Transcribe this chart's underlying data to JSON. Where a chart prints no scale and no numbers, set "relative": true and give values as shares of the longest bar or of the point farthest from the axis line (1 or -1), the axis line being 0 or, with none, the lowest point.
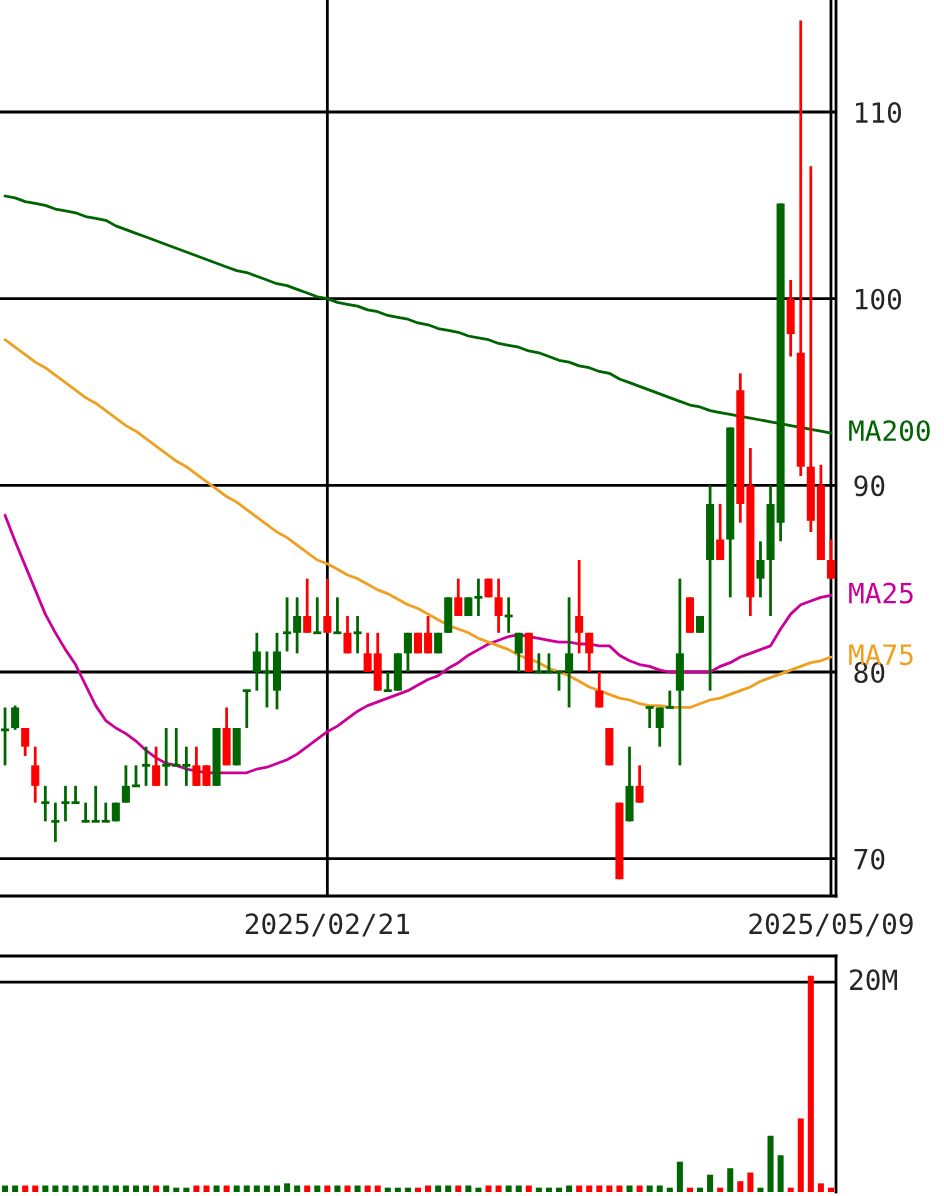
{
  "chart_data": [
    {
      "type": "candlestick",
      "categories": [
        null,
        null,
        null,
        null,
        null,
        null,
        null,
        null,
        null,
        null,
        null,
        null,
        null,
        null,
        null,
        null,
        null,
        null,
        null,
        null,
        null,
        null,
        null,
        null,
        null,
        null,
        null,
        null,
        null,
        null,
        null,
        null,
        "2025/02/21",
        null,
        null,
        null,
        null,
        null,
        null,
        null,
        null,
        null,
        null,
        null,
        null,
        null,
        null,
        null,
        null,
        null,
        null,
        null,
        null,
        null,
        null,
        null,
        null,
        null,
        null,
        null,
        null,
        null,
        null,
        null,
        null,
        null,
        null,
        null,
        null,
        null,
        null,
        null,
        null,
        null,
        null,
        null,
        null,
        null,
        null,
        null,
        null,
        null,
        "2025/05/09"
      ],
      "ohlc": [
        [
          76.9,
          78.1,
          75.0,
          76.9
        ],
        [
          77.0,
          78.2,
          76.9,
          78.1
        ],
        [
          77.0,
          77.0,
          75.5,
          76.0
        ],
        [
          75.0,
          76.0,
          73.0,
          73.9
        ],
        [
          73.0,
          73.9,
          72.0,
          73.0
        ],
        [
          72.0,
          73.0,
          70.9,
          72.0
        ],
        [
          73.0,
          73.9,
          72.0,
          73.0
        ],
        [
          73.0,
          73.9,
          73.0,
          73.0
        ],
        [
          72.0,
          73.0,
          72.0,
          72.0
        ],
        [
          72.0,
          73.9,
          72.0,
          72.0
        ],
        [
          72.0,
          73.0,
          72.0,
          72.0
        ],
        [
          72.0,
          73.0,
          72.0,
          73.0
        ],
        [
          73.0,
          75.0,
          73.0,
          73.9
        ],
        [
          73.9,
          75.0,
          73.9,
          73.9
        ],
        [
          75.0,
          76.0,
          73.9,
          75.0
        ],
        [
          75.0,
          76.0,
          73.9,
          73.9
        ],
        [
          75.0,
          77.0,
          73.9,
          75.0
        ],
        [
          75.0,
          77.0,
          75.0,
          75.0
        ],
        [
          75.0,
          76.0,
          73.9,
          75.0
        ],
        [
          75.0,
          76.0,
          73.9,
          73.9
        ],
        [
          75.0,
          75.0,
          73.9,
          73.9
        ],
        [
          73.9,
          77.0,
          73.9,
          77.0
        ],
        [
          77.0,
          78.1,
          75.0,
          75.0
        ],
        [
          75.0,
          77.0,
          75.0,
          77.0
        ],
        [
          79.0,
          79.0,
          77.0,
          79.0
        ],
        [
          80.0,
          82.1,
          79.0,
          81.1
        ],
        [
          80.0,
          81.1,
          78.1,
          80.0
        ],
        [
          79.0,
          82.1,
          78.0,
          81.1
        ],
        [
          82.1,
          84.0,
          81.1,
          82.1
        ],
        [
          82.1,
          84.0,
          81.0,
          83.0
        ],
        [
          83.0,
          85.0,
          82.1,
          82.1
        ],
        [
          82.1,
          84.0,
          82.1,
          82.1
        ],
        [
          83.0,
          85.0,
          82.1,
          82.1
        ],
        [
          82.1,
          84.0,
          82.1,
          82.1
        ],
        [
          82.1,
          83.0,
          81.0,
          81.0
        ],
        [
          82.1,
          83.0,
          81.0,
          82.1
        ],
        [
          81.0,
          82.1,
          80.0,
          80.0
        ],
        [
          81.0,
          82.1,
          79.0,
          79.0
        ],
        [
          79.0,
          80.0,
          79.0,
          79.0
        ],
        [
          79.0,
          81.0,
          79.0,
          81.0
        ],
        [
          81.0,
          82.1,
          80.0,
          82.1
        ],
        [
          82.1,
          82.1,
          81.0,
          81.0
        ],
        [
          82.1,
          83.0,
          81.0,
          81.0
        ],
        [
          81.0,
          82.1,
          81.0,
          82.1
        ],
        [
          82.1,
          84.0,
          82.1,
          84.0
        ],
        [
          84.0,
          85.0,
          83.0,
          83.0
        ],
        [
          83.0,
          84.0,
          83.0,
          84.0
        ],
        [
          84.0,
          85.0,
          83.0,
          84.0
        ],
        [
          85.0,
          85.0,
          84.0,
          84.0
        ],
        [
          84.0,
          85.0,
          82.1,
          83.0
        ],
        [
          83.0,
          84.0,
          82.1,
          83.0
        ],
        [
          81.0,
          82.1,
          80.0,
          82.1
        ],
        [
          82.1,
          82.1,
          80.0,
          80.0
        ],
        [
          80.0,
          81.0,
          80.0,
          80.0
        ],
        [
          80.0,
          81.0,
          80.0,
          80.0
        ],
        [
          80.0,
          80.0,
          79.0,
          80.0
        ],
        [
          80.0,
          84.0,
          78.1,
          81.0
        ],
        [
          83.0,
          86.0,
          81.0,
          82.1
        ],
        [
          82.1,
          82.1,
          80.0,
          81.0
        ],
        [
          79.0,
          80.0,
          78.1,
          78.1
        ],
        [
          77.0,
          77.0,
          75.0,
          75.0
        ],
        [
          73.0,
          73.0,
          68.9,
          68.9
        ],
        [
          72.0,
          76.0,
          72.0,
          73.9
        ],
        [
          73.9,
          75.0,
          73.0,
          73.0
        ],
        [
          78.1,
          78.1,
          77.0,
          78.1
        ],
        [
          77.0,
          78.1,
          76.0,
          78.1
        ],
        [
          78.1,
          79.0,
          78.1,
          78.1
        ],
        [
          79.0,
          85.0,
          75.0,
          81.0
        ],
        [
          84.0,
          84.0,
          82.1,
          82.1
        ],
        [
          82.1,
          83.0,
          82.1,
          83.0
        ],
        [
          86.0,
          90.0,
          79.0,
          89.0
        ],
        [
          87.1,
          89.0,
          86.0,
          86.0
        ],
        [
          87.1,
          93.1,
          84.0,
          93.1
        ],
        [
          95.1,
          96.0,
          88.0,
          89.0
        ],
        [
          90.0,
          92.0,
          83.0,
          84.0
        ],
        [
          85.0,
          87.0,
          84.0,
          86.0
        ],
        [
          86.0,
          90.0,
          83.0,
          89.0
        ],
        [
          88.0,
          105.1,
          87.0,
          105.1
        ],
        [
          100.0,
          101.0,
          96.9,
          98.1
        ],
        [
          97.1,
          114.9,
          90.5,
          91.0
        ],
        [
          91.0,
          107.1,
          87.5,
          88.1
        ],
        [
          90.0,
          91.1,
          86.0,
          86.0
        ],
        [
          86.0,
          87.1,
          85.0,
          85.0
        ]
      ],
      "colors": [
        "#006600",
        "#006600",
        "#ff0000",
        "#ff0000",
        "#006600",
        "#006600",
        "#006600",
        "#006600",
        "#006600",
        "#006600",
        "#006600",
        "#006600",
        "#006600",
        "#006600",
        "#006600",
        "#ff0000",
        "#006600",
        "#006600",
        "#006600",
        "#ff0000",
        "#ff0000",
        "#006600",
        "#ff0000",
        "#006600",
        "#006600",
        "#006600",
        "#006600",
        "#006600",
        "#006600",
        "#006600",
        "#ff0000",
        "#006600",
        "#ff0000",
        "#006600",
        "#ff0000",
        "#006600",
        "#ff0000",
        "#ff0000",
        "#006600",
        "#006600",
        "#006600",
        "#ff0000",
        "#ff0000",
        "#006600",
        "#006600",
        "#ff0000",
        "#006600",
        "#006600",
        "#ff0000",
        "#ff0000",
        "#006600",
        "#006600",
        "#ff0000",
        "#006600",
        "#006600",
        "#006600",
        "#006600",
        "#ff0000",
        "#ff0000",
        "#ff0000",
        "#ff0000",
        "#ff0000",
        "#006600",
        "#ff0000",
        "#006600",
        "#006600",
        "#006600",
        "#006600",
        "#ff0000",
        "#006600",
        "#006600",
        "#ff0000",
        "#006600",
        "#ff0000",
        "#ff0000",
        "#006600",
        "#006600",
        "#006600",
        "#ff0000",
        "#ff0000",
        "#ff0000",
        "#ff0000",
        "#ff0000"
      ],
      "series": [
        {
          "type": "line",
          "name": "MA200",
          "color": "#006400",
          "values": [
            105.5,
            105.4,
            105.2,
            105.1,
            105.0,
            104.8,
            104.7,
            104.6,
            104.4,
            104.3,
            104.2,
            103.9,
            103.7,
            103.5,
            103.3,
            103.1,
            102.9,
            102.7,
            102.5,
            102.3,
            102.1,
            101.9,
            101.7,
            101.5,
            101.4,
            101.2,
            101.0,
            100.8,
            100.7,
            100.5,
            100.3,
            100.1,
            100.0,
            99.8,
            99.7,
            99.6,
            99.4,
            99.3,
            99.1,
            99.0,
            98.9,
            98.7,
            98.6,
            98.4,
            98.3,
            98.2,
            98.0,
            97.9,
            97.8,
            97.6,
            97.5,
            97.4,
            97.2,
            97.1,
            96.9,
            96.7,
            96.6,
            96.4,
            96.3,
            96.1,
            96.0,
            95.7,
            95.5,
            95.3,
            95.1,
            94.9,
            94.7,
            94.5,
            94.3,
            94.2,
            94.0,
            93.9,
            93.8,
            93.7,
            93.6,
            93.5,
            93.4,
            93.3,
            93.2,
            93.1,
            93.0,
            92.9,
            92.8
          ]
        },
        {
          "type": "line",
          "name": "MA25",
          "color": "#cc0099",
          "values": [
            88.4,
            87.0,
            85.7,
            84.4,
            83.1,
            82.1,
            81.2,
            80.4,
            79.3,
            78.2,
            77.4,
            77.0,
            76.7,
            76.3,
            75.8,
            75.4,
            75.1,
            75.0,
            74.8,
            74.7,
            74.6,
            74.6,
            74.6,
            74.6,
            74.6,
            74.8,
            74.9,
            75.1,
            75.3,
            75.6,
            76.0,
            76.4,
            76.8,
            77.1,
            77.5,
            77.9,
            78.2,
            78.4,
            78.6,
            78.8,
            79.0,
            79.3,
            79.6,
            79.8,
            80.2,
            80.5,
            80.9,
            81.2,
            81.5,
            81.7,
            81.9,
            82.0,
            81.9,
            81.8,
            81.7,
            81.6,
            81.6,
            81.5,
            81.5,
            81.4,
            81.4,
            80.9,
            80.6,
            80.4,
            80.3,
            80.1,
            80.0,
            80.0,
            80.0,
            80.0,
            80.0,
            80.3,
            80.5,
            80.8,
            81.0,
            81.2,
            81.4,
            82.3,
            83.1,
            83.6,
            83.8,
            84.0,
            84.1
          ]
        },
        {
          "type": "line",
          "name": "MA75",
          "color": "#f0a020",
          "values": [
            97.8,
            97.4,
            97.0,
            96.6,
            96.3,
            95.9,
            95.5,
            95.1,
            94.7,
            94.4,
            94.0,
            93.6,
            93.2,
            92.9,
            92.5,
            92.1,
            91.7,
            91.3,
            91.0,
            90.6,
            90.2,
            89.8,
            89.4,
            89.1,
            88.7,
            88.3,
            87.9,
            87.5,
            87.2,
            86.8,
            86.4,
            86.0,
            85.8,
            85.5,
            85.2,
            85.0,
            84.7,
            84.4,
            84.2,
            83.9,
            83.6,
            83.4,
            83.1,
            82.8,
            82.5,
            82.3,
            82.1,
            81.8,
            81.6,
            81.4,
            81.2,
            80.9,
            80.7,
            80.5,
            80.2,
            80.0,
            79.8,
            79.5,
            79.2,
            79.0,
            78.8,
            78.6,
            78.5,
            78.3,
            78.2,
            78.2,
            78.1,
            78.1,
            78.1,
            78.3,
            78.5,
            78.6,
            78.8,
            79.0,
            79.2,
            79.5,
            79.7,
            79.9,
            80.1,
            80.3,
            80.5,
            80.6,
            80.8
          ]
        }
      ],
      "ylim": [
        68,
        116
      ],
      "yticks": [
        70,
        80,
        90,
        100,
        110
      ],
      "grid": true
    },
    {
      "type": "bar",
      "relative": true,
      "categories": [
        null,
        null,
        null,
        null,
        null,
        null,
        null,
        null,
        null,
        null,
        null,
        null,
        null,
        null,
        null,
        null,
        null,
        null,
        null,
        null,
        null,
        null,
        null,
        null,
        null,
        null,
        null,
        null,
        null,
        null,
        null,
        null,
        null,
        null,
        null,
        null,
        null,
        null,
        null,
        null,
        null,
        null,
        null,
        null,
        null,
        null,
        null,
        null,
        null,
        null,
        null,
        null,
        null,
        null,
        null,
        null,
        null,
        null,
        null,
        null,
        null,
        null,
        null,
        null,
        null,
        null,
        null,
        null,
        null,
        null,
        null,
        null,
        null,
        null,
        null,
        null,
        null,
        null,
        null,
        null,
        null,
        null,
        null
      ],
      "values": [
        0.03,
        0.03,
        0.03,
        0.03,
        0.03,
        0.03,
        0.03,
        0.03,
        0.03,
        0.03,
        0.03,
        0.03,
        0.03,
        0.03,
        0.03,
        0.03,
        0.03,
        0.02,
        0.02,
        0.03,
        0.03,
        0.03,
        0.03,
        0.03,
        0.03,
        0.03,
        0.03,
        0.03,
        0.04,
        0.03,
        0.03,
        0.03,
        0.03,
        0.03,
        0.03,
        0.03,
        0.03,
        0.03,
        0.02,
        0.02,
        0.02,
        0.02,
        0.03,
        0.03,
        0.03,
        0.03,
        0.03,
        0.02,
        0.03,
        0.03,
        0.03,
        0.03,
        0.03,
        0.02,
        0.02,
        0.02,
        0.03,
        0.03,
        0.03,
        0.03,
        0.03,
        0.03,
        0.03,
        0.03,
        0.03,
        0.03,
        0.02,
        0.14,
        0.02,
        0.02,
        0.08,
        0.02,
        0.11,
        0.05,
        0.09,
        0.02,
        0.26,
        0.17,
        0.02,
        0.34,
        1,
        0.04,
        0.02
      ],
      "colors": [
        "#006600",
        "#006600",
        "#ff0000",
        "#ff0000",
        "#006600",
        "#006600",
        "#006600",
        "#006600",
        "#006600",
        "#006600",
        "#006600",
        "#006600",
        "#006600",
        "#006600",
        "#006600",
        "#ff0000",
        "#006600",
        "#006600",
        "#006600",
        "#ff0000",
        "#ff0000",
        "#006600",
        "#ff0000",
        "#006600",
        "#006600",
        "#006600",
        "#006600",
        "#006600",
        "#006600",
        "#006600",
        "#ff0000",
        "#006600",
        "#ff0000",
        "#006600",
        "#ff0000",
        "#006600",
        "#ff0000",
        "#ff0000",
        "#006600",
        "#006600",
        "#006600",
        "#ff0000",
        "#ff0000",
        "#006600",
        "#006600",
        "#ff0000",
        "#006600",
        "#006600",
        "#ff0000",
        "#ff0000",
        "#006600",
        "#006600",
        "#ff0000",
        "#006600",
        "#006600",
        "#006600",
        "#006600",
        "#ff0000",
        "#ff0000",
        "#ff0000",
        "#ff0000",
        "#ff0000",
        "#006600",
        "#ff0000",
        "#006600",
        "#006600",
        "#006600",
        "#006600",
        "#ff0000",
        "#006600",
        "#006600",
        "#ff0000",
        "#006600",
        "#ff0000",
        "#ff0000",
        "#006600",
        "#006600",
        "#006600",
        "#ff0000",
        "#ff0000",
        "#ff0000",
        "#ff0000",
        "#ff0000"
      ],
      "ref_lines": [
        {
          "axis": "y",
          "value": 0.97,
          "label": "20M",
          "color": "#000000"
        }
      ]
    }
  ]
}
